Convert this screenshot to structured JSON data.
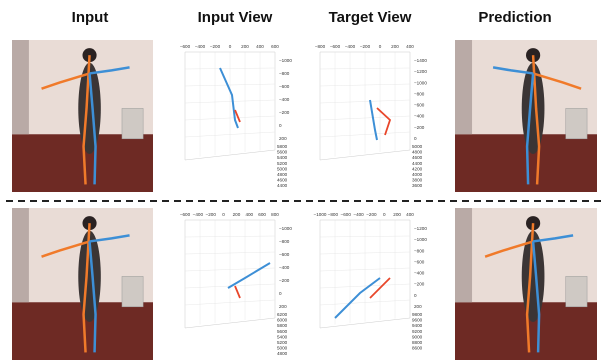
{
  "headers": [
    "Input",
    "Input View",
    "Target View",
    "Prediction"
  ],
  "rows": [
    {
      "plots": [
        {
          "top_ticks": [
            "−600",
            "−400",
            "−200",
            "0",
            "200",
            "400",
            "600"
          ],
          "right_ticks": [
            "−1000",
            "−800",
            "−600",
            "−400",
            "−200",
            "0",
            "200"
          ],
          "depth_ticks": [
            "5800",
            "5600",
            "5400",
            "5200",
            "5000",
            "4800",
            "4600",
            "4400"
          ]
        },
        {
          "top_ticks": [
            "−800",
            "−600",
            "−400",
            "−200",
            "0",
            "200",
            "400"
          ],
          "right_ticks": [
            "−1400",
            "−1200",
            "−1000",
            "−800",
            "−600",
            "−400",
            "−200",
            "0"
          ],
          "depth_ticks": [
            "5000",
            "4800",
            "4600",
            "4400",
            "4200",
            "4000",
            "3800",
            "3600"
          ]
        }
      ]
    },
    {
      "plots": [
        {
          "top_ticks": [
            "−600",
            "−400",
            "−200",
            "0",
            "200",
            "400",
            "600",
            "800"
          ],
          "right_ticks": [
            "−1000",
            "−800",
            "−600",
            "−400",
            "−200",
            "0",
            "200"
          ],
          "depth_ticks": [
            "6200",
            "6000",
            "5800",
            "5600",
            "5400",
            "5200",
            "5000",
            "4800"
          ]
        },
        {
          "top_ticks": [
            "−1000",
            "−800",
            "−600",
            "−400",
            "−200",
            "0",
            "200",
            "400"
          ],
          "right_ticks": [
            "−1200",
            "−1000",
            "−800",
            "−600",
            "−400",
            "−200",
            "0",
            "200"
          ],
          "depth_ticks": [
            "9800",
            "9600",
            "9400",
            "9200",
            "9000",
            "8800",
            "8600"
          ]
        }
      ]
    }
  ]
}
